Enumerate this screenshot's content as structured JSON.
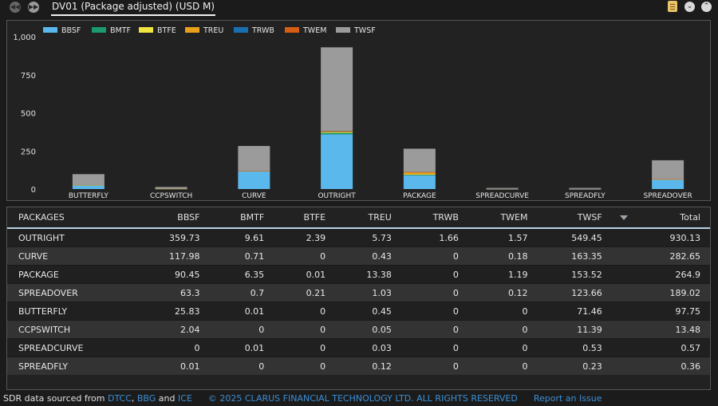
{
  "header": {
    "title": "DV01 (Package adjusted) (USD M)"
  },
  "colors": {
    "BBSF": "#5bb8ec",
    "BMTF": "#1a9a6e",
    "BTFE": "#f0e441",
    "TREU": "#e6a019",
    "TRWB": "#1a6fb0",
    "TWEM": "#d45f12",
    "TWSF": "#9b9b9b"
  },
  "chart_data": {
    "type": "bar",
    "stacked": true,
    "categories": [
      "BUTTERFLY",
      "CCPSWITCH",
      "CURVE",
      "OUTRIGHT",
      "PACKAGE",
      "SPREADCURVE",
      "SPREADFLY",
      "SPREADOVER"
    ],
    "series": [
      {
        "name": "BBSF",
        "values": [
          25.83,
          2.04,
          117.98,
          359.73,
          90.45,
          0,
          0.01,
          63.3
        ]
      },
      {
        "name": "BMTF",
        "values": [
          0.01,
          0,
          0.71,
          9.61,
          6.35,
          0.01,
          0,
          0.7
        ]
      },
      {
        "name": "BTFE",
        "values": [
          0,
          0,
          0,
          2.39,
          0.01,
          0,
          0,
          0.21
        ]
      },
      {
        "name": "TREU",
        "values": [
          0.45,
          0.05,
          0.43,
          5.73,
          13.38,
          0.03,
          0.12,
          1.03
        ]
      },
      {
        "name": "TRWB",
        "values": [
          0,
          0,
          0,
          1.66,
          0,
          0,
          0,
          0
        ]
      },
      {
        "name": "TWEM",
        "values": [
          0,
          0,
          0.18,
          1.57,
          1.19,
          0,
          0,
          0.12
        ]
      },
      {
        "name": "TWSF",
        "values": [
          71.46,
          11.39,
          163.35,
          549.45,
          153.52,
          0.53,
          0.23,
          123.66
        ]
      }
    ],
    "yticks": [
      "0",
      "250",
      "500",
      "750",
      "1,000"
    ],
    "ylim": [
      0,
      1000
    ],
    "legend_position": "top-left",
    "grid": false
  },
  "table": {
    "columns": [
      "PACKAGES",
      "BBSF",
      "BMTF",
      "BTFE",
      "TREU",
      "TRWB",
      "TWEM",
      "TWSF",
      "Total"
    ],
    "rows": [
      [
        "OUTRIGHT",
        "359.73",
        "9.61",
        "2.39",
        "5.73",
        "1.66",
        "1.57",
        "549.45",
        "930.13"
      ],
      [
        "CURVE",
        "117.98",
        "0.71",
        "0",
        "0.43",
        "0",
        "0.18",
        "163.35",
        "282.65"
      ],
      [
        "PACKAGE",
        "90.45",
        "6.35",
        "0.01",
        "13.38",
        "0",
        "1.19",
        "153.52",
        "264.9"
      ],
      [
        "SPREADOVER",
        "63.3",
        "0.7",
        "0.21",
        "1.03",
        "0",
        "0.12",
        "123.66",
        "189.02"
      ],
      [
        "BUTTERFLY",
        "25.83",
        "0.01",
        "0",
        "0.45",
        "0",
        "0",
        "71.46",
        "97.75"
      ],
      [
        "CCPSWITCH",
        "2.04",
        "0",
        "0",
        "0.05",
        "0",
        "0",
        "11.39",
        "13.48"
      ],
      [
        "SPREADCURVE",
        "0",
        "0.01",
        "0",
        "0.03",
        "0",
        "0",
        "0.53",
        "0.57"
      ],
      [
        "SPREADFLY",
        "0.01",
        "0",
        "0",
        "0.12",
        "0",
        "0",
        "0.23",
        "0.36"
      ]
    ]
  },
  "footer": {
    "prefix": "SDR data sourced from ",
    "dtcc": "DTCC",
    "comma": ",",
    "bbg": "BBG",
    "and": " and ",
    "ice": "ICE",
    "copyright": "© 2025 CLARUS FINANCIAL TECHNOLOGY LTD. ALL RIGHTS RESERVED",
    "report": "Report an Issue"
  }
}
